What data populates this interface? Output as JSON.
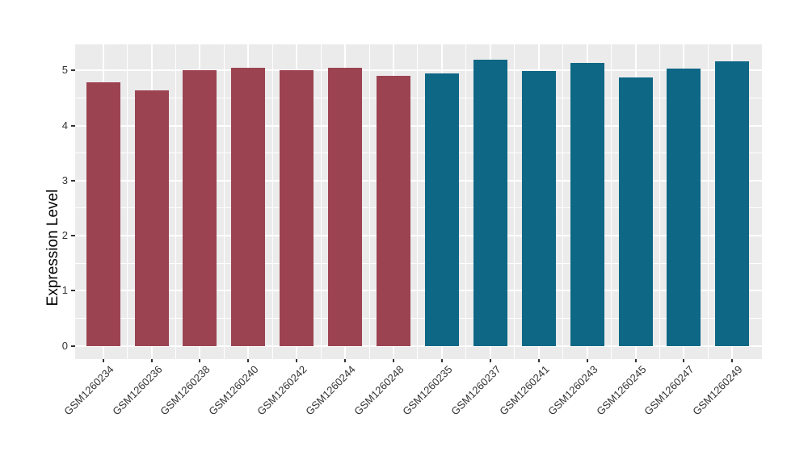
{
  "chart_data": {
    "type": "bar",
    "title": "",
    "xlabel": "",
    "ylabel": "Expression Level",
    "ylim": [
      0,
      5.44
    ],
    "yticks": [
      0,
      1,
      2,
      3,
      4,
      5
    ],
    "legend": "none",
    "grid": "on",
    "style": {
      "panel_bg": "#EBEBEB",
      "grid_color": "#FFFFFF",
      "tick_mark_color": "#333333",
      "tick_label_color": "#333333",
      "axis_title_color": "#000000",
      "figure_bg": "#FFFFFF"
    },
    "group_colors": {
      "group1": "#9c4352",
      "group2": "#0d6785"
    },
    "bars": [
      {
        "label": "GSM1260234",
        "value": 4.78,
        "group": "group1"
      },
      {
        "label": "GSM1260236",
        "value": 4.63,
        "group": "group1"
      },
      {
        "label": "GSM1260238",
        "value": 5.0,
        "group": "group1"
      },
      {
        "label": "GSM1260240",
        "value": 5.05,
        "group": "group1"
      },
      {
        "label": "GSM1260242",
        "value": 5.01,
        "group": "group1"
      },
      {
        "label": "GSM1260244",
        "value": 5.04,
        "group": "group1"
      },
      {
        "label": "GSM1260248",
        "value": 4.9,
        "group": "group1"
      },
      {
        "label": "GSM1260235",
        "value": 4.95,
        "group": "group2"
      },
      {
        "label": "GSM1260237",
        "value": 5.2,
        "group": "group2"
      },
      {
        "label": "GSM1260241",
        "value": 4.99,
        "group": "group2"
      },
      {
        "label": "GSM1260243",
        "value": 5.13,
        "group": "group2"
      },
      {
        "label": "GSM1260245",
        "value": 4.87,
        "group": "group2"
      },
      {
        "label": "GSM1260247",
        "value": 5.03,
        "group": "group2"
      },
      {
        "label": "GSM1260249",
        "value": 5.16,
        "group": "group2"
      }
    ]
  }
}
